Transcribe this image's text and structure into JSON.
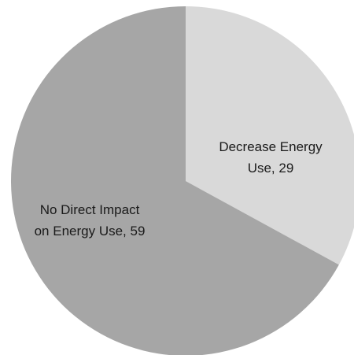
{
  "chart_data": {
    "type": "pie",
    "title": "",
    "slices": [
      {
        "label_lines": [
          "Decrease Energy",
          "Use, 29"
        ],
        "name": "Decrease Energy Use",
        "value": 29,
        "color": "#d9d9d9"
      },
      {
        "label_lines": [
          "No Direct Impact",
          "on Energy Use, 59"
        ],
        "name": "No Direct Impact on Energy Use",
        "value": 59,
        "color": "#a6a6a6"
      }
    ],
    "legend": "none",
    "start": "12 o'clock",
    "direction": "clockwise"
  }
}
